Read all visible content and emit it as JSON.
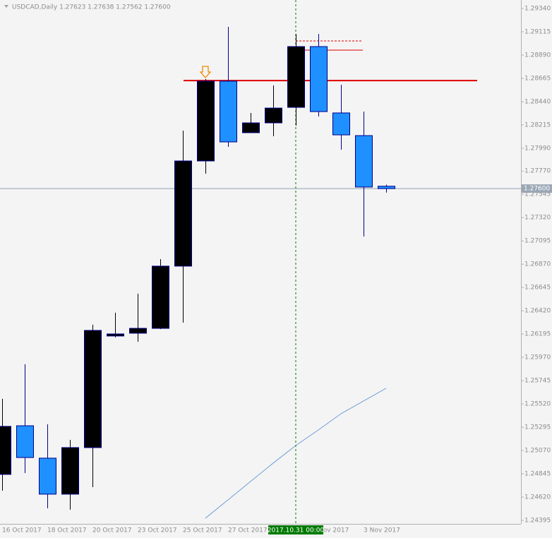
{
  "chart_data": {
    "type": "candlestick",
    "title": "USDCAD,Daily 1.27623 1.27638 1.27562 1.27600",
    "categories": [
      "16 Oct 2017",
      null,
      "18 Oct 2017",
      null,
      "20 Oct 2017",
      null,
      "23 Oct 2017",
      null,
      "25 Oct 2017",
      null,
      "27 Oct 2017",
      null,
      null,
      null,
      "Nov 2017",
      null,
      "3 Nov 2017",
      null
    ],
    "open": [
      1.24839,
      1.25309,
      1.24996,
      1.24648,
      1.25098,
      1.26176,
      1.26203,
      1.2625,
      1.26851,
      1.27867,
      1.28638,
      1.2814,
      1.28235,
      1.28385,
      1.28972,
      1.28331,
      1.28112,
      1.27623
    ],
    "high": [
      1.25569,
      1.25903,
      1.25323,
      1.25173,
      1.26285,
      1.26401,
      1.26585,
      1.26919,
      1.2816,
      1.28658,
      1.29163,
      1.28331,
      1.28597,
      1.29094,
      1.29094,
      1.28603,
      1.28344,
      1.27638
    ],
    "low": [
      1.24682,
      1.24852,
      1.24511,
      1.24498,
      1.24716,
      1.26162,
      1.26121,
      1.26243,
      1.26305,
      1.27744,
      1.28003,
      1.2814,
      1.28106,
      1.28208,
      1.28297,
      1.27976,
      1.27137,
      1.27562
    ],
    "close": [
      1.25303,
      1.25002,
      1.24648,
      1.25098,
      1.2623,
      1.26196,
      1.2625,
      1.26851,
      1.27867,
      1.28638,
      1.28051,
      1.28235,
      1.28378,
      1.28972,
      1.28344,
      1.28119,
      1.27615,
      1.276
    ],
    "bull_color": "#000000",
    "bear_color": "#1e90ff",
    "outline_color": "#00008b",
    "series": [
      {
        "color": "#6f9fd8",
        "values": [
          null,
          null,
          null,
          null,
          null,
          null,
          null,
          null,
          null,
          1.24416,
          1.24593,
          1.24771,
          1.24948,
          1.25118,
          1.25268,
          1.25425,
          1.25548,
          1.25671
        ]
      }
    ],
    "levels": [
      {
        "value": 1.28644,
        "color": "#e00000",
        "style": "solid",
        "width": 2
      },
      {
        "value": 1.28938,
        "color": "#e00000",
        "style": "solid",
        "width": 1
      },
      {
        "value": 1.29026,
        "color": "#e00000",
        "style": "dashed",
        "width": 1
      }
    ],
    "bid_line": {
      "value": 1.276,
      "label": "1.27600",
      "color": "#8fa0b3"
    },
    "crosshair_label": "2017.10.31 00:00",
    "ylim": [
      1.24361,
      1.29422
    ],
    "yticks": [
      {
        "value": 1.2934,
        "label": "1.29340"
      },
      {
        "value": 1.29115,
        "label": "1.29115"
      },
      {
        "value": 1.2889,
        "label": "1.28890"
      },
      {
        "value": 1.28665,
        "label": "1.28665"
      },
      {
        "value": 1.2844,
        "label": "1.28440"
      },
      {
        "value": 1.28215,
        "label": "1.28215"
      },
      {
        "value": 1.2799,
        "label": "1.27990"
      },
      {
        "value": 1.2777,
        "label": "1.27770"
      },
      {
        "value": 1.27545,
        "label": "1.27545"
      },
      {
        "value": 1.2732,
        "label": "1.27320"
      },
      {
        "value": 1.27095,
        "label": "1.27095"
      },
      {
        "value": 1.2687,
        "label": "1.26870"
      },
      {
        "value": 1.26645,
        "label": "1.26645"
      },
      {
        "value": 1.2642,
        "label": "1.26420"
      },
      {
        "value": 1.26195,
        "label": "1.26195"
      },
      {
        "value": 1.2597,
        "label": "1.25970"
      },
      {
        "value": 1.25745,
        "label": "1.25745"
      },
      {
        "value": 1.2552,
        "label": "1.25520"
      },
      {
        "value": 1.25295,
        "label": "1.25295"
      },
      {
        "value": 1.2507,
        "label": "1.25070"
      },
      {
        "value": 1.24845,
        "label": "1.24845"
      },
      {
        "value": 1.2462,
        "label": "1.24620"
      },
      {
        "value": 1.24395,
        "label": "1.24395"
      }
    ]
  }
}
